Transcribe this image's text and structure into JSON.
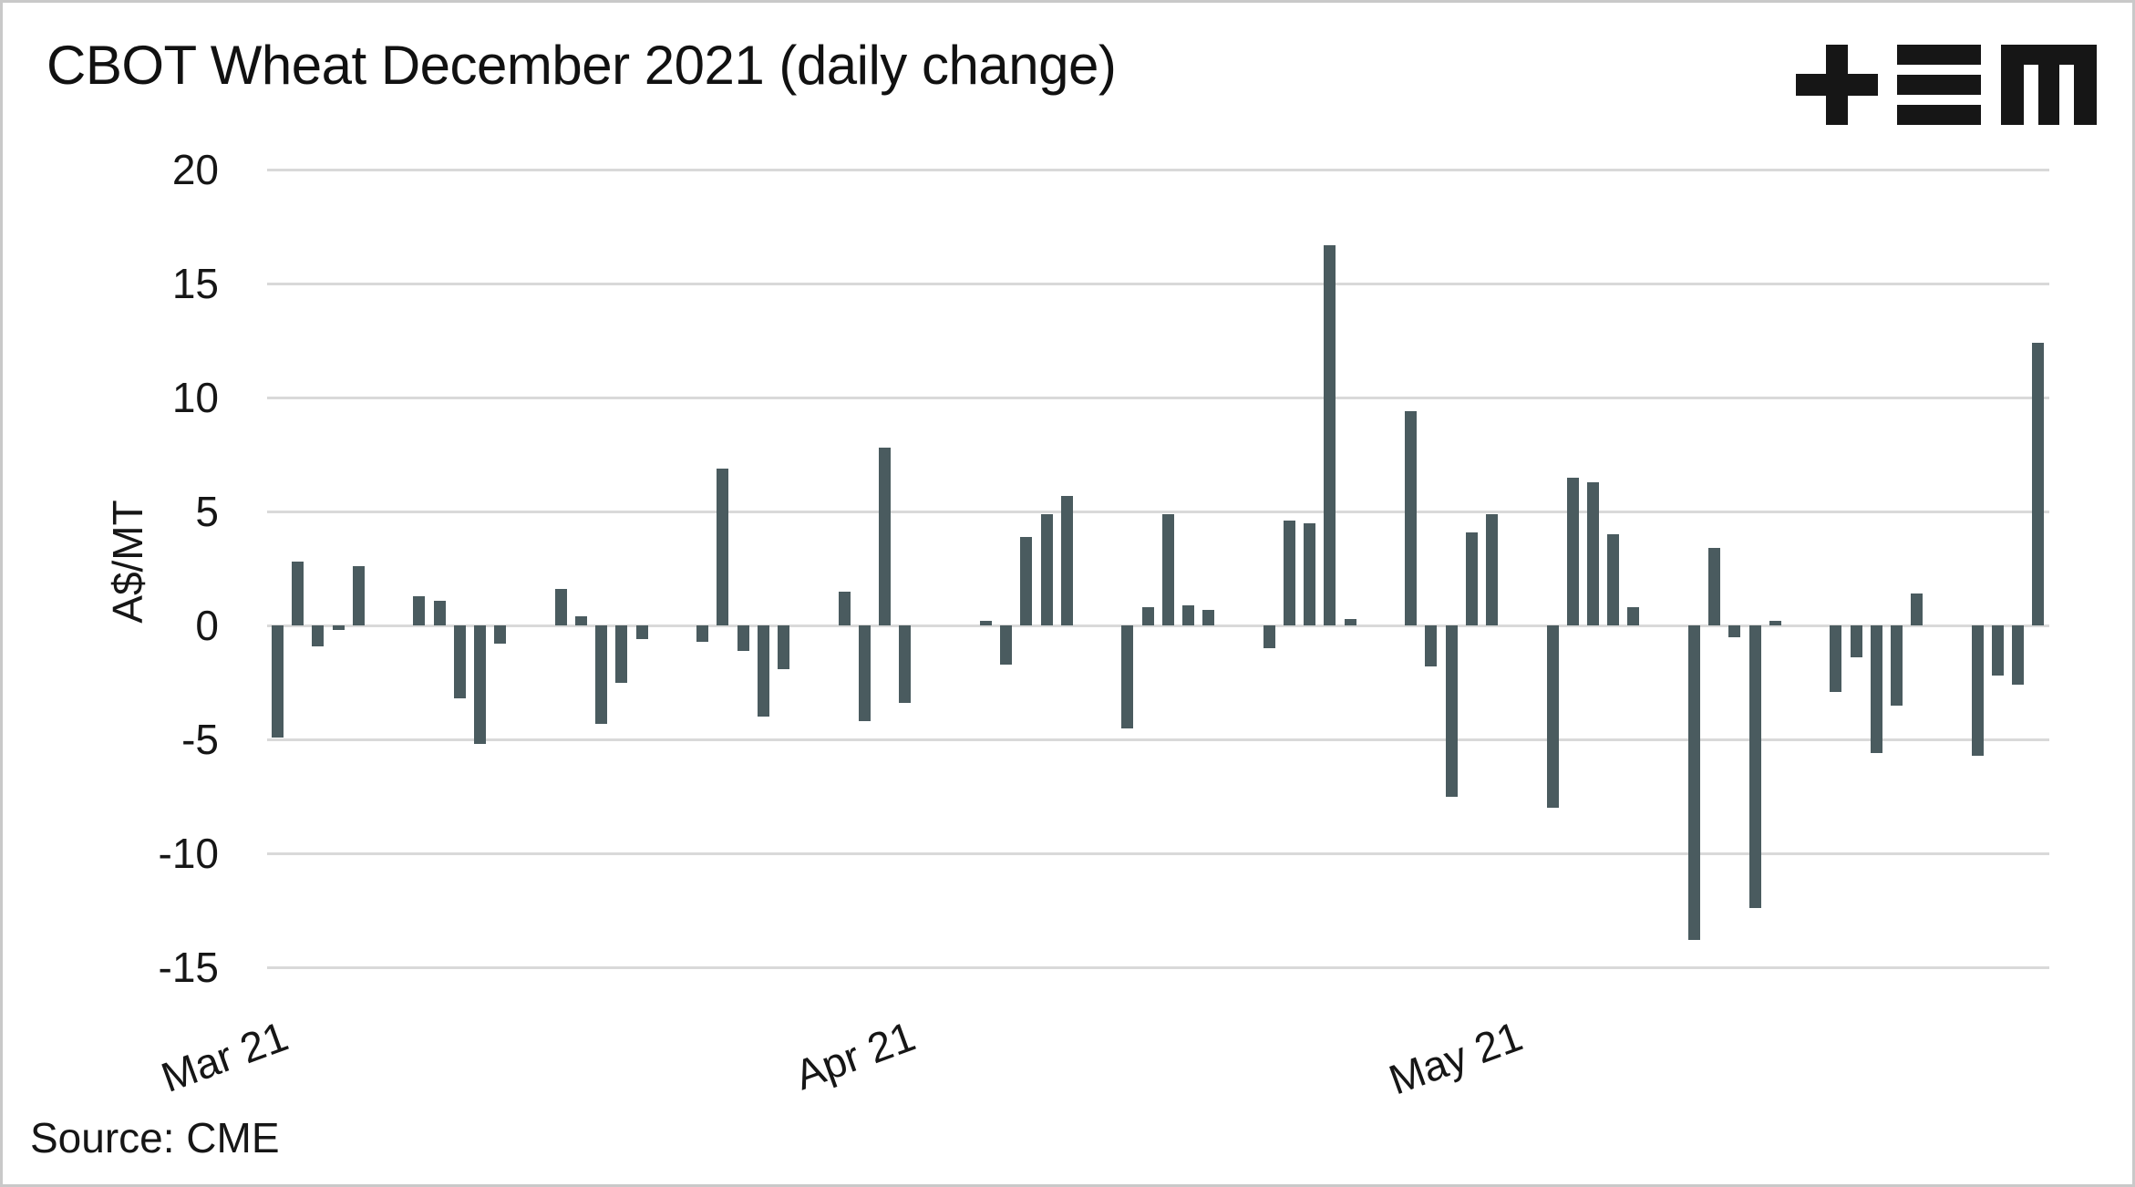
{
  "page": {
    "background": "#ffffff",
    "border_color": "#c9c9c9"
  },
  "header": {
    "title": "CBOT Wheat December 2021 (daily change)"
  },
  "logo": {
    "glyphs": [
      "plus-icon",
      "triple-bar-icon",
      "block-m-icon"
    ],
    "color": "#161616"
  },
  "footer": {
    "source": "Source: CME"
  },
  "chart_data": {
    "type": "bar",
    "title": "CBOT Wheat December 2021 (daily change)",
    "xlabel": "",
    "ylabel": "A$/MT",
    "units": "A$/MT",
    "bar_color": "#4a5b5f",
    "gridline_color": "#d9d9d9",
    "grid": true,
    "legend": false,
    "ylim": [
      -15,
      20
    ],
    "y_ticks": [
      20,
      15,
      10,
      5,
      0,
      -5,
      -10,
      -15
    ],
    "x_ticks": [
      {
        "label": "Mar 21",
        "date": "2021-03-01"
      },
      {
        "label": "Apr 21",
        "date": "2021-04-01"
      },
      {
        "label": "May 21",
        "date": "2021-05-01"
      }
    ],
    "series": [
      {
        "name": "daily change",
        "points": [
          [
            "2021-03-01",
            -4.9
          ],
          [
            "2021-03-02",
            2.8
          ],
          [
            "2021-03-03",
            -0.9
          ],
          [
            "2021-03-04",
            -0.2
          ],
          [
            "2021-03-05",
            2.6
          ],
          [
            "2021-03-08",
            1.3
          ],
          [
            "2021-03-09",
            1.1
          ],
          [
            "2021-03-10",
            -3.2
          ],
          [
            "2021-03-11",
            -5.2
          ],
          [
            "2021-03-12",
            -0.8
          ],
          [
            "2021-03-15",
            1.6
          ],
          [
            "2021-03-16",
            0.4
          ],
          [
            "2021-03-17",
            -4.3
          ],
          [
            "2021-03-18",
            -2.5
          ],
          [
            "2021-03-19",
            -0.6
          ],
          [
            "2021-03-22",
            -0.7
          ],
          [
            "2021-03-23",
            6.9
          ],
          [
            "2021-03-24",
            -1.1
          ],
          [
            "2021-03-25",
            -4.0
          ],
          [
            "2021-03-26",
            -1.9
          ],
          [
            "2021-03-29",
            1.5
          ],
          [
            "2021-03-30",
            -4.2
          ],
          [
            "2021-03-31",
            7.8
          ],
          [
            "2021-04-01",
            -3.4
          ],
          [
            "2021-04-05",
            0.2
          ],
          [
            "2021-04-06",
            -1.7
          ],
          [
            "2021-04-07",
            3.9
          ],
          [
            "2021-04-08",
            4.9
          ],
          [
            "2021-04-09",
            5.7
          ],
          [
            "2021-04-12",
            -4.5
          ],
          [
            "2021-04-13",
            0.8
          ],
          [
            "2021-04-14",
            4.9
          ],
          [
            "2021-04-15",
            0.9
          ],
          [
            "2021-04-16",
            0.7
          ],
          [
            "2021-04-19",
            -1.0
          ],
          [
            "2021-04-20",
            4.6
          ],
          [
            "2021-04-21",
            4.5
          ],
          [
            "2021-04-22",
            16.7
          ],
          [
            "2021-04-23",
            0.3
          ],
          [
            "2021-04-26",
            9.4
          ],
          [
            "2021-04-27",
            -1.8
          ],
          [
            "2021-04-28",
            -7.5
          ],
          [
            "2021-04-29",
            4.1
          ],
          [
            "2021-04-30",
            4.9
          ],
          [
            "2021-05-03",
            -8.0
          ],
          [
            "2021-05-04",
            6.5
          ],
          [
            "2021-05-05",
            6.3
          ],
          [
            "2021-05-06",
            4.0
          ],
          [
            "2021-05-07",
            0.8
          ],
          [
            "2021-05-10",
            -13.8
          ],
          [
            "2021-05-11",
            3.4
          ],
          [
            "2021-05-12",
            -0.5
          ],
          [
            "2021-05-13",
            -12.4
          ],
          [
            "2021-05-14",
            0.2
          ],
          [
            "2021-05-17",
            -2.9
          ],
          [
            "2021-05-18",
            -1.4
          ],
          [
            "2021-05-19",
            -5.6
          ],
          [
            "2021-05-20",
            -3.5
          ],
          [
            "2021-05-21",
            1.4
          ],
          [
            "2021-05-24",
            -5.7
          ],
          [
            "2021-05-25",
            -2.2
          ],
          [
            "2021-05-26",
            -2.6
          ],
          [
            "2021-05-27",
            12.4
          ]
        ]
      }
    ]
  }
}
